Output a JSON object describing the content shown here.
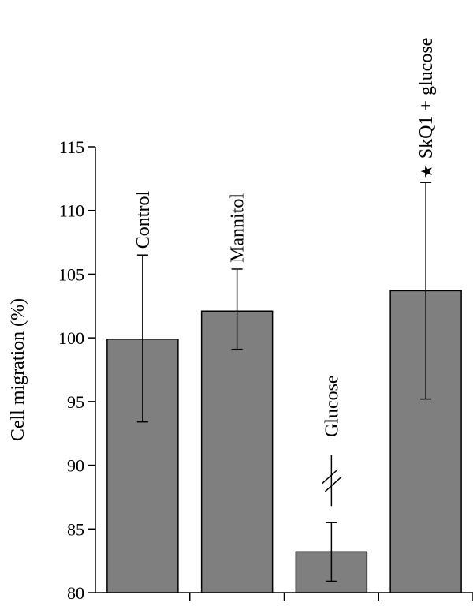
{
  "chart_data": {
    "type": "bar",
    "ylabel": "Cell migration (%)",
    "ylim": [
      80,
      115
    ],
    "yticks": [
      80,
      85,
      90,
      95,
      100,
      105,
      110,
      115
    ],
    "bar_color": "#7f7f7f",
    "categories": [
      "Control",
      "Mannitol",
      "Glucose",
      "SkQ1 + glucose"
    ],
    "values": [
      99.9,
      102.1,
      83.2,
      103.7
    ],
    "error": [
      [
        93.4,
        106.5
      ],
      [
        99.1,
        105.4
      ],
      [
        80.9,
        85.5
      ],
      [
        95.2,
        112.2
      ]
    ],
    "annotations": [
      {
        "category": "Glucose",
        "symbol": "//",
        "meaning": "significance marker"
      },
      {
        "category": "SkQ1 + glucose",
        "symbol": "★",
        "meaning": "significance marker"
      }
    ],
    "grid": false,
    "legend": "none"
  }
}
